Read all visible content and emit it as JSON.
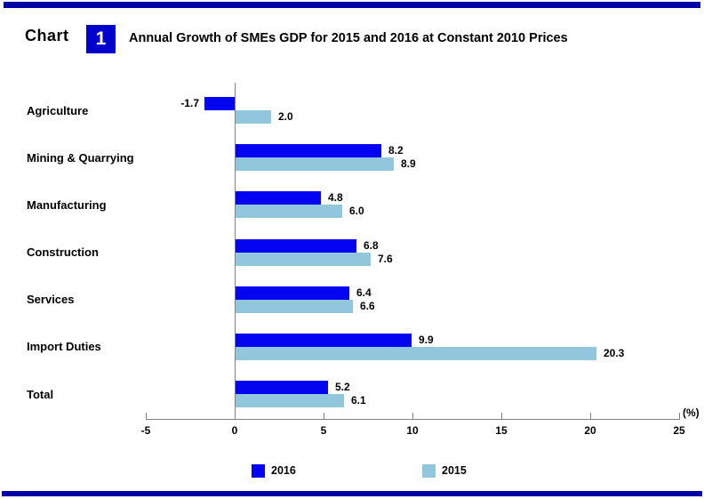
{
  "header": {
    "chart_label": "Chart",
    "chart_number": "1",
    "title": "Annual Growth of SMEs GDP for 2015 and 2016 at Constant 2010 Prices"
  },
  "colors": {
    "rule": "#0000A8",
    "chart_number_box": "#0000CC",
    "series_2016": "#0404F0",
    "series_2015": "#92C6DC",
    "axis": "#808080"
  },
  "chart_data": {
    "type": "bar",
    "orientation": "horizontal",
    "title": "Annual Growth of SMEs GDP for 2015 and 2016 at Constant 2010 Prices",
    "categories": [
      "Agriculture",
      "Mining & Quarrying",
      "Manufacturing",
      "Construction",
      "Services",
      "Import Duties",
      "Total"
    ],
    "series": [
      {
        "name": "2016",
        "color": "#0404F0",
        "values": [
          -1.7,
          8.2,
          4.8,
          6.8,
          6.4,
          9.9,
          5.2
        ]
      },
      {
        "name": "2015",
        "color": "#92C6DC",
        "values": [
          2.0,
          8.9,
          6.0,
          7.6,
          6.6,
          20.3,
          6.1
        ]
      }
    ],
    "x_axis": {
      "min": -5,
      "max": 25,
      "tick_step": 5,
      "tick_labels": [
        "-5",
        "0",
        "5",
        "10",
        "15",
        "20",
        "25"
      ],
      "unit_label": "(%)"
    },
    "grid": false,
    "legend_position": "bottom",
    "legend": [
      "2016",
      "2015"
    ],
    "value_label_decimals": 1
  }
}
